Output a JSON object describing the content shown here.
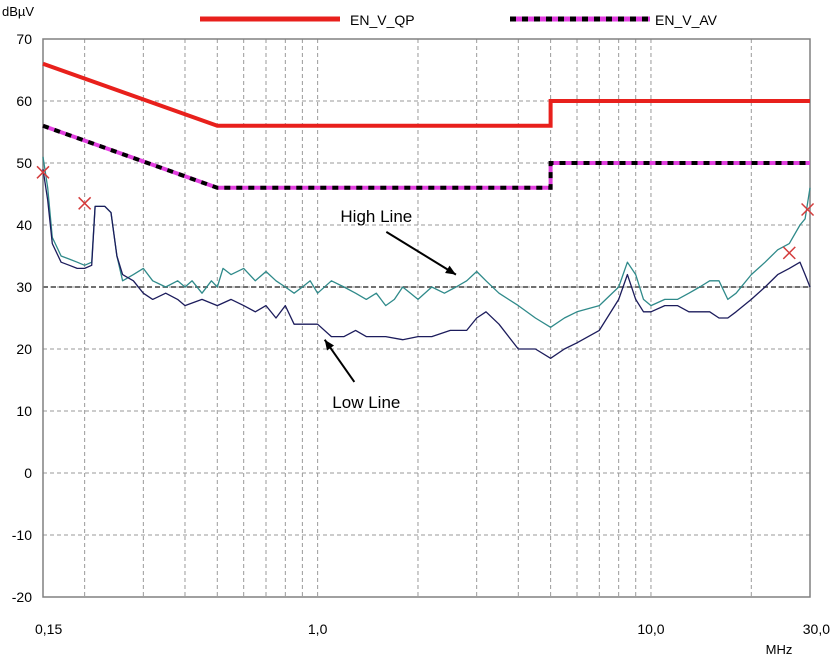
{
  "chart_data": {
    "type": "line",
    "ylabel": "dBµV",
    "xlabel": "MHz",
    "x_scale": "log",
    "xlim": [
      0.15,
      30.0
    ],
    "ylim": [
      -20,
      70
    ],
    "y_ticks": [
      -20,
      -10,
      0,
      10,
      20,
      30,
      40,
      50,
      60,
      70
    ],
    "x_tick_labels": [
      {
        "value": 0.15,
        "label": "0,15"
      },
      {
        "value": 1.0,
        "label": "1,0"
      },
      {
        "value": 10.0,
        "label": "10,0"
      },
      {
        "value": 30.0,
        "label": "30,0"
      }
    ],
    "grid": true,
    "legend_position": "top",
    "reference_line_y": 30,
    "series": [
      {
        "name": "EN_V_QP",
        "color": "#e8201c",
        "style": "solid",
        "points": [
          [
            0.15,
            66
          ],
          [
            0.5,
            56
          ],
          [
            5.0,
            56
          ],
          [
            5.0,
            60
          ],
          [
            30.0,
            60
          ]
        ]
      },
      {
        "name": "EN_V_AV",
        "color": "#e23fe0",
        "style": "dashed-black-over-magenta",
        "points": [
          [
            0.15,
            56
          ],
          [
            0.5,
            46
          ],
          [
            5.0,
            46
          ],
          [
            5.0,
            50
          ],
          [
            30.0,
            50
          ]
        ]
      },
      {
        "color": "#2f8a8a",
        "points": [
          [
            0.15,
            51
          ],
          [
            0.155,
            46
          ],
          [
            0.16,
            38
          ],
          [
            0.17,
            35
          ],
          [
            0.18,
            34.5
          ],
          [
            0.19,
            34
          ],
          [
            0.2,
            33.5
          ],
          [
            0.21,
            34
          ],
          [
            0.215,
            43
          ],
          [
            0.23,
            43
          ],
          [
            0.24,
            42
          ],
          [
            0.25,
            35
          ],
          [
            0.26,
            31
          ],
          [
            0.28,
            32
          ],
          [
            0.3,
            33
          ],
          [
            0.32,
            31
          ],
          [
            0.35,
            30
          ],
          [
            0.38,
            31
          ],
          [
            0.4,
            30
          ],
          [
            0.42,
            31
          ],
          [
            0.45,
            29
          ],
          [
            0.48,
            31
          ],
          [
            0.5,
            30
          ],
          [
            0.52,
            33
          ],
          [
            0.55,
            32
          ],
          [
            0.6,
            33
          ],
          [
            0.65,
            31
          ],
          [
            0.7,
            32.5
          ],
          [
            0.75,
            31
          ],
          [
            0.8,
            30
          ],
          [
            0.85,
            29
          ],
          [
            0.9,
            30
          ],
          [
            0.95,
            31
          ],
          [
            1.0,
            29
          ],
          [
            1.1,
            31
          ],
          [
            1.2,
            30
          ],
          [
            1.3,
            29
          ],
          [
            1.4,
            28
          ],
          [
            1.5,
            29
          ],
          [
            1.6,
            27
          ],
          [
            1.7,
            28
          ],
          [
            1.8,
            30
          ],
          [
            1.9,
            29
          ],
          [
            2.0,
            28
          ],
          [
            2.2,
            30
          ],
          [
            2.4,
            29
          ],
          [
            2.6,
            30
          ],
          [
            2.8,
            31
          ],
          [
            3.0,
            32.5
          ],
          [
            3.2,
            31
          ],
          [
            3.5,
            29
          ],
          [
            4.0,
            27
          ],
          [
            4.5,
            25
          ],
          [
            5.0,
            23.5
          ],
          [
            5.5,
            25
          ],
          [
            6.0,
            26
          ],
          [
            7.0,
            27
          ],
          [
            8.0,
            30
          ],
          [
            8.5,
            34
          ],
          [
            9.0,
            32
          ],
          [
            9.5,
            28
          ],
          [
            10.0,
            27
          ],
          [
            11.0,
            28
          ],
          [
            12.0,
            28
          ],
          [
            13.0,
            29
          ],
          [
            14.0,
            30
          ],
          [
            15.0,
            31
          ],
          [
            16.0,
            31
          ],
          [
            17.0,
            28
          ],
          [
            18.0,
            29
          ],
          [
            20.0,
            32
          ],
          [
            22.0,
            34
          ],
          [
            24.0,
            36
          ],
          [
            26.0,
            37
          ],
          [
            28.0,
            40
          ],
          [
            29.0,
            41
          ],
          [
            30.0,
            46
          ]
        ]
      },
      {
        "color": "#1c1c5c",
        "points": [
          [
            0.15,
            49
          ],
          [
            0.155,
            44
          ],
          [
            0.16,
            37
          ],
          [
            0.17,
            34
          ],
          [
            0.18,
            33.5
          ],
          [
            0.19,
            33
          ],
          [
            0.2,
            33
          ],
          [
            0.21,
            33.5
          ],
          [
            0.215,
            43
          ],
          [
            0.23,
            43
          ],
          [
            0.24,
            42
          ],
          [
            0.25,
            35
          ],
          [
            0.26,
            32
          ],
          [
            0.28,
            31
          ],
          [
            0.3,
            29
          ],
          [
            0.32,
            28
          ],
          [
            0.35,
            29
          ],
          [
            0.38,
            28
          ],
          [
            0.4,
            27
          ],
          [
            0.45,
            28
          ],
          [
            0.5,
            27
          ],
          [
            0.55,
            28
          ],
          [
            0.6,
            27
          ],
          [
            0.65,
            26
          ],
          [
            0.7,
            27
          ],
          [
            0.75,
            25
          ],
          [
            0.8,
            27
          ],
          [
            0.85,
            24
          ],
          [
            0.9,
            24
          ],
          [
            1.0,
            24
          ],
          [
            1.1,
            22
          ],
          [
            1.2,
            22
          ],
          [
            1.3,
            23
          ],
          [
            1.4,
            22
          ],
          [
            1.5,
            22
          ],
          [
            1.6,
            22
          ],
          [
            1.8,
            21.5
          ],
          [
            2.0,
            22
          ],
          [
            2.2,
            22
          ],
          [
            2.5,
            23
          ],
          [
            2.8,
            23
          ],
          [
            3.0,
            25
          ],
          [
            3.2,
            26
          ],
          [
            3.5,
            24
          ],
          [
            4.0,
            20
          ],
          [
            4.5,
            20
          ],
          [
            5.0,
            18.5
          ],
          [
            5.5,
            20
          ],
          [
            6.0,
            21
          ],
          [
            7.0,
            23
          ],
          [
            8.0,
            28
          ],
          [
            8.5,
            32
          ],
          [
            9.0,
            28
          ],
          [
            9.5,
            26
          ],
          [
            10.0,
            26
          ],
          [
            11.0,
            27
          ],
          [
            12.0,
            27
          ],
          [
            13.0,
            26
          ],
          [
            14.0,
            26
          ],
          [
            15.0,
            26
          ],
          [
            16.0,
            25
          ],
          [
            17.0,
            25
          ],
          [
            18.0,
            26
          ],
          [
            20.0,
            28
          ],
          [
            22.0,
            30
          ],
          [
            24.0,
            32
          ],
          [
            26.0,
            33
          ],
          [
            28.0,
            34
          ],
          [
            29.0,
            32
          ],
          [
            30.0,
            30
          ]
        ]
      }
    ],
    "markers": [
      {
        "x": 0.15,
        "y": 48.5
      },
      {
        "x": 0.2,
        "y": 43.5
      },
      {
        "x": 26.0,
        "y": 35.5
      },
      {
        "x": 29.5,
        "y": 42.5
      }
    ],
    "marker_color": "#d43c3c",
    "annotations": [
      {
        "text": "High Line",
        "x": 1.5,
        "y": 40.5,
        "arrow_to_x": 2.6,
        "arrow_to_y": 32
      },
      {
        "text": "Low Line",
        "x": 1.4,
        "y": 10.5,
        "arrow_to_x": 1.05,
        "arrow_to_y": 21.5
      }
    ],
    "axis_color": "#808080",
    "grid_color": "#9a9a9a"
  }
}
